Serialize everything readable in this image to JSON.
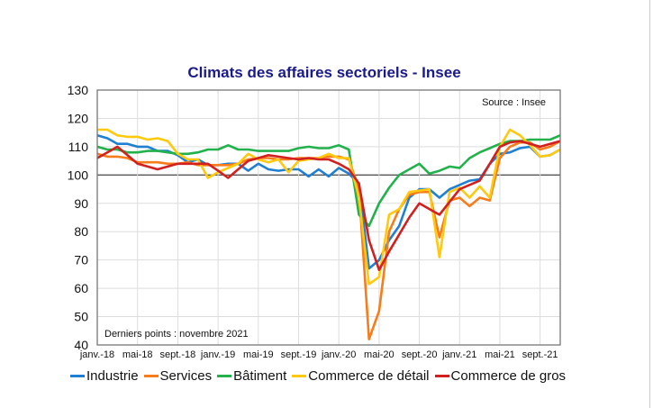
{
  "chart_data": {
    "type": "line",
    "title": "Climats des affaires sectoriels - Insee",
    "source_note": "Source : Insee",
    "footnote": "Derniers points : novembre 2021",
    "xlabel": "",
    "ylabel": "",
    "x_range": [
      "janv.-18",
      "nov.-21"
    ],
    "x_tick_labels": [
      "janv.-18",
      "mai-18",
      "sept.-18",
      "janv.-19",
      "mai-19",
      "sept.-19",
      "janv.-20",
      "mai-20",
      "sept.-20",
      "janv.-21",
      "mai-21",
      "sept.-21"
    ],
    "x_tick_step_months": 4,
    "ylim": [
      40,
      130
    ],
    "y_ticks": [
      40,
      50,
      60,
      70,
      80,
      90,
      100,
      110,
      120,
      130
    ],
    "reference_line": 100,
    "grid": true,
    "legend_position": "bottom",
    "series": [
      {
        "name": "Industrie",
        "color": "#1f7fd4",
        "values": [
          114,
          113,
          111,
          111,
          110,
          110,
          108.5,
          108.5,
          107,
          104.5,
          105.5,
          103.5,
          103.5,
          104,
          104,
          101.5,
          104,
          102,
          101.5,
          102,
          102,
          99.5,
          102,
          99.5,
          102.5,
          100.5,
          97,
          67,
          70,
          77,
          82,
          92,
          95,
          95,
          92,
          95,
          96.5,
          98,
          98.5,
          104,
          107.5,
          108,
          109.5,
          110,
          106.5,
          107,
          109
        ]
      },
      {
        "name": "Services",
        "color": "#f97c1a",
        "values": [
          107.5,
          106.5,
          106.5,
          106,
          104.5,
          104.5,
          104.5,
          104,
          104,
          104.5,
          103.5,
          103.5,
          103.5,
          103.5,
          104,
          105.5,
          106,
          106,
          105.5,
          105.5,
          106,
          106,
          106,
          106.5,
          106.5,
          105.5,
          95,
          42,
          52,
          80,
          88,
          93,
          94,
          94,
          78,
          91,
          92,
          89,
          92,
          91,
          106,
          110,
          111.5,
          111.5,
          109,
          110,
          112
        ]
      },
      {
        "name": "Bâtiment",
        "color": "#22b14c",
        "values": [
          110,
          109,
          109,
          108,
          108,
          108.5,
          108.5,
          108,
          107.5,
          107.5,
          108,
          109,
          109,
          110.5,
          109,
          109,
          108.5,
          108.5,
          108.5,
          108.5,
          109.5,
          110,
          109.5,
          109.5,
          110.5,
          109,
          86,
          82,
          90,
          95.5,
          100,
          102,
          104,
          100.5,
          101.5,
          103,
          102.5,
          106,
          108,
          109.5,
          111,
          112,
          112,
          112.5,
          112.5,
          112.5,
          114
        ]
      },
      {
        "name": "Commerce de détail",
        "color": "#ffc90e",
        "values": [
          116,
          116,
          114,
          113.5,
          113.5,
          112.5,
          113,
          112,
          107.5,
          105.5,
          105.5,
          99,
          101,
          102.5,
          104,
          107.5,
          105.5,
          104.5,
          105.5,
          101,
          105,
          105.5,
          106,
          107.5,
          106,
          106,
          92,
          61.5,
          64,
          86,
          88,
          94,
          94.5,
          95,
          71,
          94,
          95.5,
          92,
          96,
          92,
          110,
          116,
          114,
          110.5,
          106.5,
          107,
          109
        ]
      },
      {
        "name": "Commerce de gros",
        "color": "#d21f1f",
        "values": [
          106,
          108,
          110,
          107,
          104,
          103,
          102,
          103,
          104,
          104,
          104,
          104,
          101.5,
          99,
          102,
          105,
          106,
          107,
          106.5,
          106,
          105.5,
          106,
          105.5,
          105.5,
          104,
          102,
          97,
          77,
          66.5,
          73,
          79,
          85,
          90,
          88,
          86,
          90.5,
          95,
          96.5,
          98,
          104,
          110,
          111.5,
          112,
          111,
          110,
          111,
          112
        ]
      }
    ]
  }
}
